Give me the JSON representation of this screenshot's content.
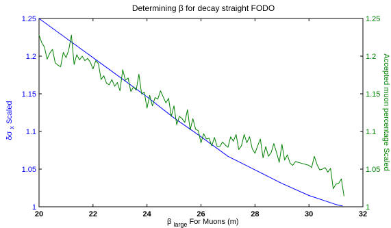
{
  "colors": {
    "background": "#ffffff",
    "axes": "#000000",
    "left_series": "#0000ff",
    "right_series": "#008000"
  },
  "chart_data": {
    "type": "line",
    "title": "Determining β  for decay straight FODO",
    "xlabel": {
      "main": "β",
      "subscript": "large",
      "tail": " For Muons (m)"
    },
    "ylabel_left": {
      "main": "δσ",
      "subscript": "x",
      "tail": " Scaled"
    },
    "ylabel_right": "Accepted muon percentage Scaled",
    "xlim": [
      20,
      32
    ],
    "ylim_left": [
      1,
      1.25
    ],
    "ylim_right": [
      1,
      1.25
    ],
    "x_ticks": [
      20,
      22,
      24,
      26,
      28,
      30,
      32
    ],
    "x_tick_labels": [
      "20",
      "22",
      "24",
      "26",
      "28",
      "30",
      "32"
    ],
    "y_ticks": [
      1,
      1.05,
      1.1,
      1.15,
      1.2,
      1.25
    ],
    "y_tick_labels_left": [
      "1",
      "1.05",
      "1.1",
      "1.15",
      "1.2",
      "1.25"
    ],
    "y_tick_labels_right": [
      "1",
      "1.05",
      "1.1",
      "1.15",
      "1.2",
      "1.25"
    ],
    "grid": false,
    "series": [
      {
        "axis": "left",
        "color": "#0000ff",
        "x": [
          20.0,
          21.0,
          22.0,
          23.0,
          24.0,
          25.0,
          26.0,
          27.0,
          28.0,
          29.0,
          30.0,
          31.0,
          31.25
        ],
        "y": [
          1.25,
          1.224,
          1.198,
          1.172,
          1.146,
          1.118,
          1.093,
          1.067,
          1.049,
          1.031,
          1.015,
          1.003,
          1.001
        ]
      },
      {
        "axis": "right",
        "color": "#008000",
        "x": [
          20.0,
          20.1,
          20.2,
          20.3,
          20.4,
          20.5,
          20.6,
          20.7,
          20.8,
          20.9,
          21.0,
          21.1,
          21.2,
          21.3,
          21.4,
          21.5,
          21.6,
          21.7,
          21.8,
          21.9,
          22.0,
          22.1,
          22.2,
          22.3,
          22.4,
          22.5,
          22.6,
          22.7,
          22.8,
          22.9,
          23.0,
          23.1,
          23.2,
          23.3,
          23.4,
          23.5,
          23.6,
          23.7,
          23.8,
          23.9,
          24.0,
          24.1,
          24.2,
          24.3,
          24.4,
          24.5,
          24.6,
          24.7,
          24.8,
          24.9,
          25.0,
          25.1,
          25.2,
          25.3,
          25.4,
          25.5,
          25.6,
          25.7,
          25.8,
          25.9,
          26.0,
          26.1,
          26.2,
          26.3,
          26.4,
          26.5,
          26.6,
          26.7,
          26.8,
          26.9,
          27.0,
          27.1,
          27.2,
          27.3,
          27.4,
          27.5,
          27.6,
          27.7,
          27.8,
          27.9,
          28.0,
          28.1,
          28.2,
          28.3,
          28.4,
          28.5,
          28.6,
          28.7,
          28.8,
          28.9,
          29.0,
          29.1,
          29.2,
          29.3,
          29.4,
          29.5,
          29.6,
          29.7,
          29.8,
          29.9,
          30.0,
          30.1,
          30.2,
          30.3,
          30.4,
          30.5,
          30.6,
          30.7,
          30.8,
          30.9,
          31.0,
          31.1,
          31.2,
          31.3
        ],
        "y": [
          1.228,
          1.218,
          1.212,
          1.196,
          1.204,
          1.209,
          1.191,
          1.188,
          1.186,
          1.205,
          1.198,
          1.208,
          1.228,
          1.189,
          1.202,
          1.195,
          1.2,
          1.194,
          1.197,
          1.192,
          1.183,
          1.194,
          1.19,
          1.169,
          1.174,
          1.164,
          1.162,
          1.169,
          1.16,
          1.165,
          1.154,
          1.182,
          1.168,
          1.171,
          1.153,
          1.159,
          1.155,
          1.176,
          1.15,
          1.152,
          1.131,
          1.148,
          1.134,
          1.145,
          1.143,
          1.154,
          1.146,
          1.138,
          1.144,
          1.12,
          1.134,
          1.109,
          1.12,
          1.117,
          1.112,
          1.129,
          1.102,
          1.117,
          1.103,
          1.101,
          1.085,
          1.097,
          1.09,
          1.091,
          1.081,
          1.092,
          1.08,
          1.08,
          1.086,
          1.082,
          1.079,
          1.093,
          1.087,
          1.096,
          1.076,
          1.081,
          1.096,
          1.085,
          1.093,
          1.077,
          1.071,
          1.081,
          1.09,
          1.065,
          1.08,
          1.067,
          1.072,
          1.084,
          1.072,
          1.059,
          1.083,
          1.062,
          1.069,
          1.058,
          1.055,
          1.06,
          1.059,
          1.058,
          1.057,
          1.056,
          1.055,
          1.052,
          1.067,
          1.056,
          1.049,
          1.05,
          1.052,
          1.046,
          1.051,
          1.024,
          1.03,
          1.031,
          1.037,
          1.014
        ]
      }
    ]
  }
}
